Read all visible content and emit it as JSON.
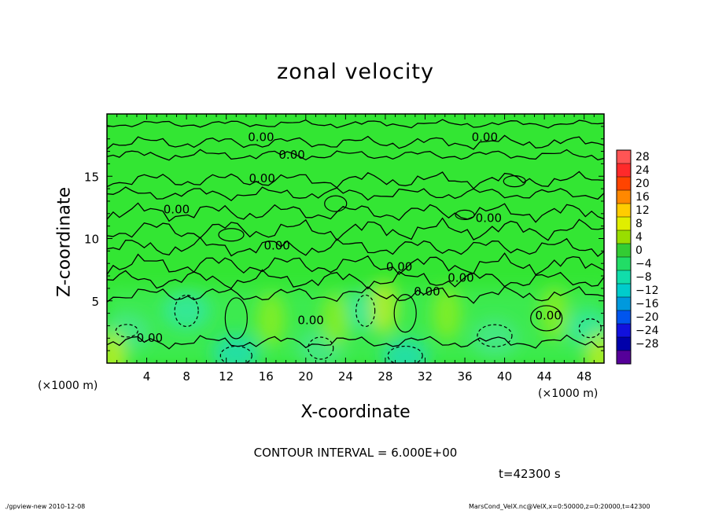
{
  "colors": {
    "background": "#ffffff",
    "field_base": "#33e633",
    "contour_line": "#000000"
  },
  "footer": {
    "left": "./gpview-new  2010-12-08",
    "right": "MarsCond_VelX.nc@VelX,x=0:50000,z=0:20000,t=42300"
  },
  "chart_data": {
    "type": "heatmap",
    "title": "zonal velocity",
    "xlabel": "X-coordinate",
    "ylabel": "Z-coordinate",
    "x_unit_left": "(×1000 m)",
    "x_unit_right": "(×1000 m)",
    "xlim": [
      0,
      50
    ],
    "ylim": [
      0,
      20
    ],
    "x_ticks": [
      4,
      8,
      12,
      16,
      20,
      24,
      28,
      32,
      36,
      40,
      44,
      48
    ],
    "y_ticks": [
      5,
      10,
      15
    ],
    "contour_interval_text": "CONTOUR INTERVAL = 6.000E+00",
    "time_text": "t=42300 s",
    "contour_labels": [
      {
        "text": "0.00",
        "x": 15.5,
        "y": 18.1
      },
      {
        "text": "0.00",
        "x": 18.6,
        "y": 16.7
      },
      {
        "text": "0.00",
        "x": 15.6,
        "y": 14.8
      },
      {
        "text": "0.00",
        "x": 7.0,
        "y": 12.3
      },
      {
        "text": "0.00",
        "x": 38.0,
        "y": 18.1
      },
      {
        "text": "0.00",
        "x": 38.4,
        "y": 11.6
      },
      {
        "text": "0.00",
        "x": 17.1,
        "y": 9.4
      },
      {
        "text": "0.00",
        "x": 29.4,
        "y": 7.7
      },
      {
        "text": "0.00",
        "x": 35.6,
        "y": 6.8
      },
      {
        "text": "0.00",
        "x": 32.2,
        "y": 5.7
      },
      {
        "text": "0.00",
        "x": 20.5,
        "y": 3.4
      },
      {
        "text": "0.00",
        "x": 4.3,
        "y": 2.0
      },
      {
        "text": "0.00",
        "x": 44.4,
        "y": 3.8
      }
    ],
    "colorbar": {
      "levels": [
        "28",
        "24",
        "20",
        "16",
        "12",
        "8",
        "4",
        "0",
        "−4",
        "−8",
        "−12",
        "−16",
        "−20",
        "−24",
        "−28"
      ],
      "colors": [
        "#ff5555",
        "#ff2a2a",
        "#ff4400",
        "#ff8800",
        "#ffcc00",
        "#e0ee00",
        "#99dd00",
        "#33cc33",
        "#22dd66",
        "#11ddaa",
        "#00cccc",
        "#0099dd",
        "#0055ee",
        "#1111dd",
        "#0000aa",
        "#550099"
      ]
    },
    "field_features": [
      {
        "kind": "cool",
        "x": 2,
        "y": 2.5,
        "value": -6
      },
      {
        "kind": "cool",
        "x": 8,
        "y": 4.2,
        "value": -8
      },
      {
        "kind": "cool",
        "x": 13,
        "y": 0.8,
        "value": -10
      },
      {
        "kind": "cool",
        "x": 21.5,
        "y": 1.2,
        "value": -6
      },
      {
        "kind": "cool",
        "x": 26,
        "y": 4.2,
        "value": -8
      },
      {
        "kind": "cool",
        "x": 30,
        "y": 0.5,
        "value": -10
      },
      {
        "kind": "cool",
        "x": 39,
        "y": 2.0,
        "value": -6
      },
      {
        "kind": "cool",
        "x": 48.5,
        "y": 2.8,
        "value": -8
      },
      {
        "kind": "warm",
        "x": 16.5,
        "y": 3.5,
        "value": 5
      },
      {
        "kind": "warm",
        "x": 23,
        "y": 3.5,
        "value": 4
      },
      {
        "kind": "warm",
        "x": 27.8,
        "y": 4.5,
        "value": 6
      },
      {
        "kind": "warm",
        "x": 34.2,
        "y": 4.0,
        "value": 5
      },
      {
        "kind": "warm",
        "x": 45,
        "y": 4.0,
        "value": 4
      },
      {
        "kind": "warm",
        "x": 0.5,
        "y": 0.4,
        "value": 6
      },
      {
        "kind": "warm",
        "x": 49.6,
        "y": 0.4,
        "value": 6
      }
    ]
  }
}
